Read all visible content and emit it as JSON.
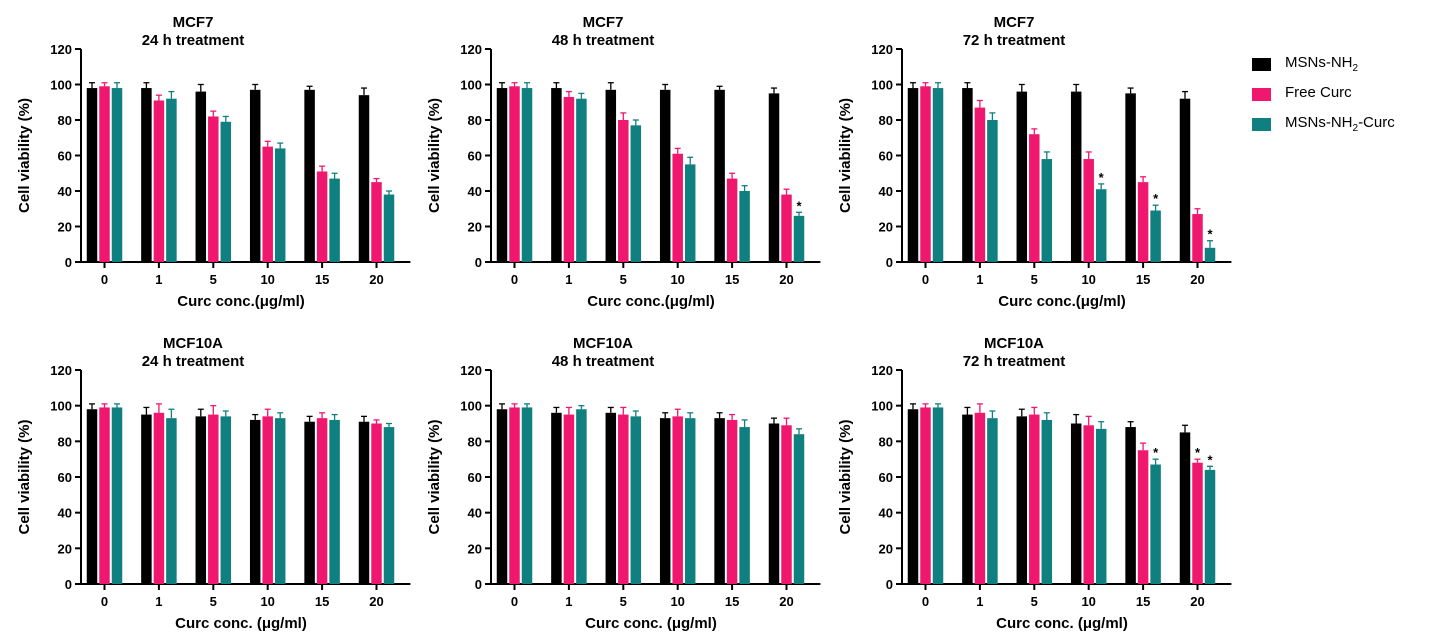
{
  "legend": {
    "items": [
      {
        "key": "msns",
        "label_pre": "MSNs-NH",
        "label_sub": "2",
        "label_post": "",
        "color": "#000000"
      },
      {
        "key": "free",
        "label_pre": "Free Curc",
        "label_sub": "",
        "label_post": "",
        "color": "#f0186e"
      },
      {
        "key": "msnsc",
        "label_pre": "MSNs-NH",
        "label_sub": "2",
        "label_post": "-Curc",
        "color": "#0f7f80"
      }
    ]
  },
  "chart_data": [
    {
      "type": "bar",
      "title": "MCF7",
      "subtitle": "24 h treatment",
      "xlabel": "Curc conc.(μg/ml)",
      "ylabel": "Cell viability (%)",
      "ylim": [
        0,
        120
      ],
      "yticks": [
        0,
        20,
        40,
        60,
        80,
        100,
        120
      ],
      "categories": [
        "0",
        "1",
        "5",
        "10",
        "15",
        "20"
      ],
      "series": [
        {
          "name": "MSNs-NH2",
          "values": [
            98,
            98,
            96,
            97,
            97,
            94
          ],
          "errors": [
            3,
            3,
            4,
            3,
            2,
            4
          ]
        },
        {
          "name": "Free Curc",
          "values": [
            99,
            91,
            82,
            65,
            51,
            45
          ],
          "errors": [
            2,
            3,
            3,
            3,
            3,
            2
          ]
        },
        {
          "name": "MSNs-NH2-Curc",
          "values": [
            98,
            92,
            79,
            64,
            47,
            38
          ],
          "errors": [
            3,
            4,
            3,
            3,
            3,
            2
          ]
        }
      ],
      "significance": []
    },
    {
      "type": "bar",
      "title": "MCF7",
      "subtitle": "48 h treatment",
      "xlabel": "Curc conc.(μg/ml)",
      "ylabel": "Cell viability (%)",
      "ylim": [
        0,
        120
      ],
      "yticks": [
        0,
        20,
        40,
        60,
        80,
        100,
        120
      ],
      "categories": [
        "0",
        "1",
        "5",
        "10",
        "15",
        "20"
      ],
      "series": [
        {
          "name": "MSNs-NH2",
          "values": [
            98,
            98,
            97,
            97,
            97,
            95
          ],
          "errors": [
            3,
            3,
            4,
            3,
            2,
            3
          ]
        },
        {
          "name": "Free Curc",
          "values": [
            99,
            93,
            80,
            61,
            47,
            38
          ],
          "errors": [
            2,
            3,
            4,
            3,
            3,
            3
          ]
        },
        {
          "name": "MSNs-NH2-Curc",
          "values": [
            98,
            92,
            77,
            55,
            40,
            26
          ],
          "errors": [
            3,
            3,
            3,
            4,
            3,
            2
          ]
        }
      ],
      "significance": [
        {
          "category": "20",
          "series": "MSNs-NH2-Curc",
          "label": "*"
        }
      ]
    },
    {
      "type": "bar",
      "title": "MCF7",
      "subtitle": "72 h treatment",
      "xlabel": "Curc conc.(μg/ml)",
      "ylabel": "Cell viability (%)",
      "ylim": [
        0,
        120
      ],
      "yticks": [
        0,
        20,
        40,
        60,
        80,
        100,
        120
      ],
      "categories": [
        "0",
        "1",
        "5",
        "10",
        "15",
        "20"
      ],
      "series": [
        {
          "name": "MSNs-NH2",
          "values": [
            98,
            98,
            96,
            96,
            95,
            92
          ],
          "errors": [
            3,
            3,
            4,
            4,
            3,
            4
          ]
        },
        {
          "name": "Free Curc",
          "values": [
            99,
            87,
            72,
            58,
            45,
            27
          ],
          "errors": [
            2,
            4,
            3,
            4,
            3,
            3
          ]
        },
        {
          "name": "MSNs-NH2-Curc",
          "values": [
            98,
            80,
            58,
            41,
            29,
            8
          ],
          "errors": [
            3,
            4,
            4,
            3,
            3,
            4
          ]
        }
      ],
      "significance": [
        {
          "category": "10",
          "series": "MSNs-NH2-Curc",
          "label": "*"
        },
        {
          "category": "15",
          "series": "MSNs-NH2-Curc",
          "label": "*"
        },
        {
          "category": "20",
          "series": "MSNs-NH2-Curc",
          "label": "*"
        }
      ]
    },
    {
      "type": "bar",
      "title": "MCF10A",
      "subtitle": "24 h treatment",
      "xlabel": "Curc conc. (μg/ml)",
      "ylabel": "Cell viability (%)",
      "ylim": [
        0,
        120
      ],
      "yticks": [
        0,
        20,
        40,
        60,
        80,
        100,
        120
      ],
      "categories": [
        "0",
        "1",
        "5",
        "10",
        "15",
        "20"
      ],
      "series": [
        {
          "name": "MSNs-NH2",
          "values": [
            98,
            95,
            94,
            92,
            91,
            91
          ],
          "errors": [
            3,
            4,
            4,
            3,
            3,
            3
          ]
        },
        {
          "name": "Free Curc",
          "values": [
            99,
            96,
            95,
            94,
            93,
            90
          ],
          "errors": [
            2,
            5,
            5,
            4,
            3,
            2
          ]
        },
        {
          "name": "MSNs-NH2-Curc",
          "values": [
            99,
            93,
            94,
            93,
            92,
            88
          ],
          "errors": [
            2,
            5,
            3,
            3,
            3,
            2
          ]
        }
      ],
      "significance": []
    },
    {
      "type": "bar",
      "title": "MCF10A",
      "subtitle": "48 h treatment",
      "xlabel": "Curc conc. (μg/ml)",
      "ylabel": "Cell viability (%)",
      "ylim": [
        0,
        120
      ],
      "yticks": [
        0,
        20,
        40,
        60,
        80,
        100,
        120
      ],
      "categories": [
        "0",
        "1",
        "5",
        "10",
        "15",
        "20"
      ],
      "series": [
        {
          "name": "MSNs-NH2",
          "values": [
            98,
            96,
            96,
            93,
            93,
            90
          ],
          "errors": [
            3,
            3,
            3,
            3,
            3,
            3
          ]
        },
        {
          "name": "Free Curc",
          "values": [
            99,
            95,
            95,
            94,
            92,
            89
          ],
          "errors": [
            2,
            4,
            4,
            4,
            3,
            4
          ]
        },
        {
          "name": "MSNs-NH2-Curc",
          "values": [
            99,
            98,
            94,
            93,
            88,
            84
          ],
          "errors": [
            2,
            2,
            3,
            3,
            4,
            3
          ]
        }
      ],
      "significance": []
    },
    {
      "type": "bar",
      "title": "MCF10A",
      "subtitle": "72 h treatment",
      "xlabel": "Curc conc. (μg/ml)",
      "ylabel": "Cell viability (%)",
      "ylim": [
        0,
        120
      ],
      "yticks": [
        0,
        20,
        40,
        60,
        80,
        100,
        120
      ],
      "categories": [
        "0",
        "1",
        "5",
        "10",
        "15",
        "20"
      ],
      "series": [
        {
          "name": "MSNs-NH2",
          "values": [
            98,
            95,
            94,
            90,
            88,
            85
          ],
          "errors": [
            3,
            4,
            4,
            5,
            3,
            4
          ]
        },
        {
          "name": "Free Curc",
          "values": [
            99,
            96,
            95,
            89,
            75,
            68
          ],
          "errors": [
            2,
            5,
            4,
            5,
            4,
            2
          ]
        },
        {
          "name": "MSNs-NH2-Curc",
          "values": [
            99,
            93,
            92,
            87,
            67,
            64
          ],
          "errors": [
            2,
            4,
            4,
            4,
            3,
            2
          ]
        }
      ],
      "significance": [
        {
          "category": "15",
          "series": "MSNs-NH2-Curc",
          "label": "*"
        },
        {
          "category": "20",
          "series": "Free Curc",
          "label": "*"
        },
        {
          "category": "20",
          "series": "MSNs-NH2-Curc",
          "label": "*"
        }
      ]
    }
  ]
}
